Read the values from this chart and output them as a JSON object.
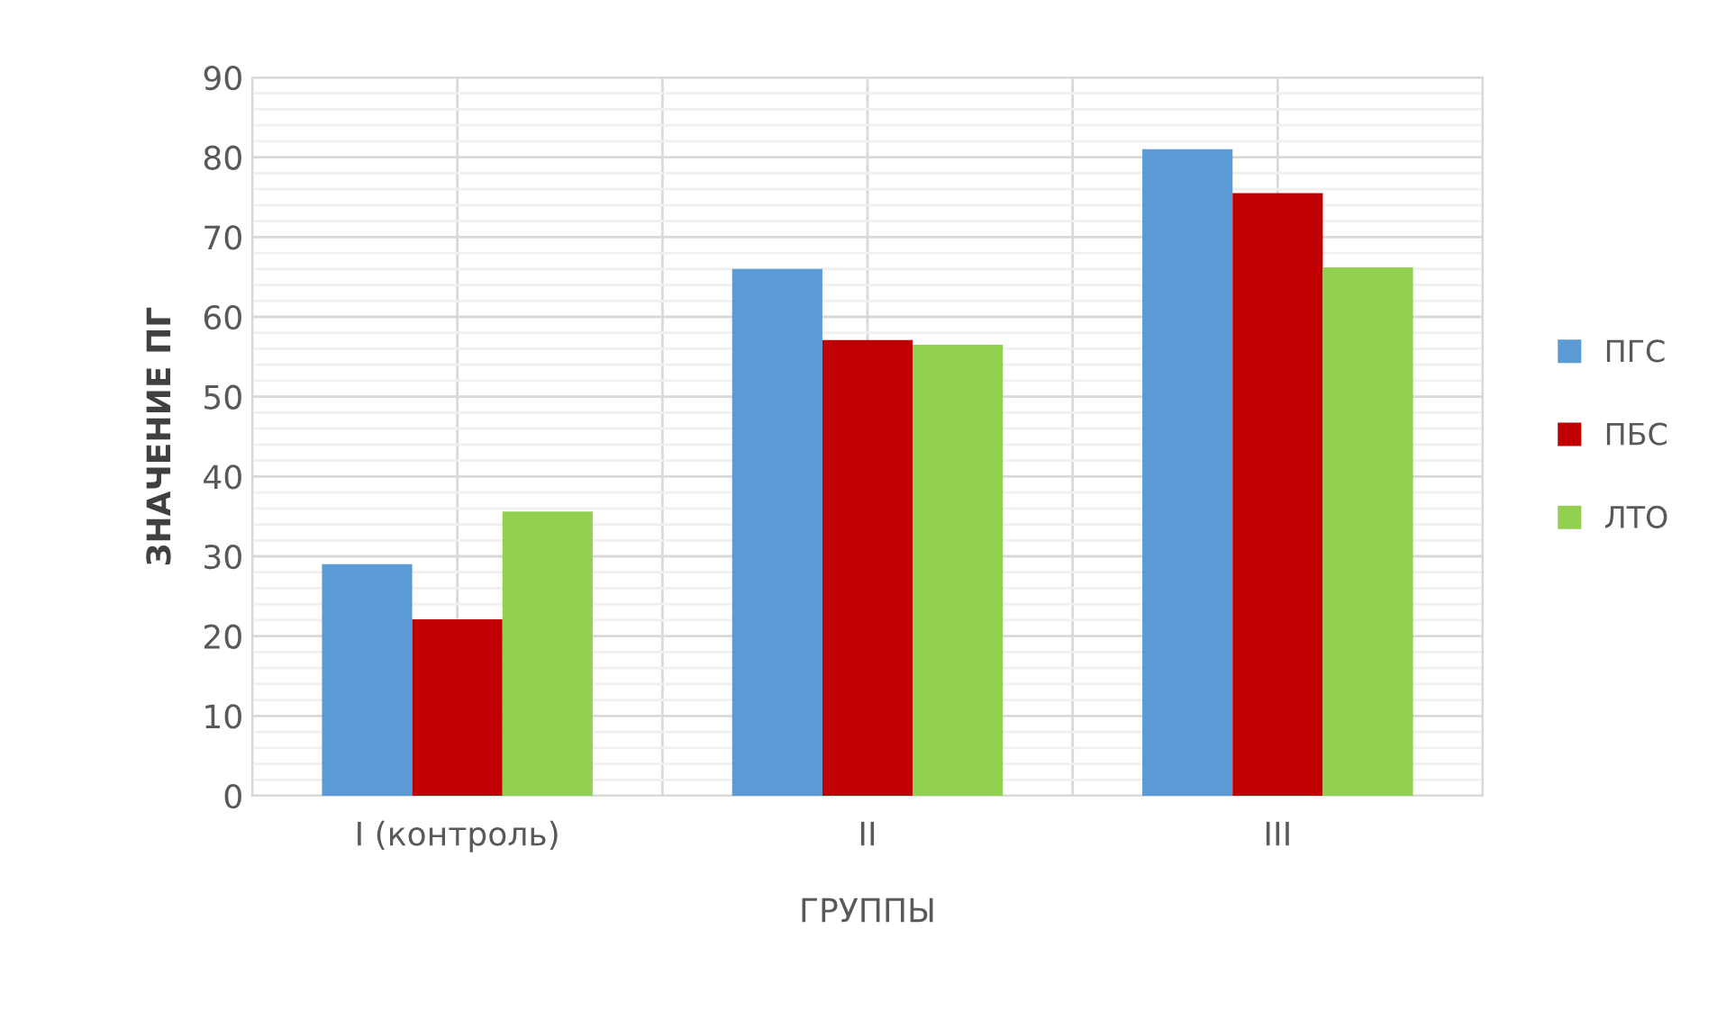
{
  "chart_data": {
    "type": "bar",
    "xlabel": "ГРУППЫ",
    "ylabel": "ЗНАЧЕНИЕ ПГ",
    "categories": [
      "I (контроль)",
      "II",
      "III"
    ],
    "series": [
      {
        "name": "ПГС",
        "color": "#5b9bd5",
        "values": [
          29,
          66,
          81
        ]
      },
      {
        "name": "ПБС",
        "color": "#c00000",
        "values": [
          22.1,
          57.1,
          75.5
        ]
      },
      {
        "name": "ЛТО",
        "color": "#92d050",
        "values": [
          35.6,
          56.5,
          66.2
        ]
      }
    ],
    "ylim": [
      0,
      90
    ],
    "yticks": [
      0,
      10,
      20,
      30,
      40,
      50,
      60,
      70,
      80,
      90
    ],
    "grid": true,
    "legend": "right"
  }
}
